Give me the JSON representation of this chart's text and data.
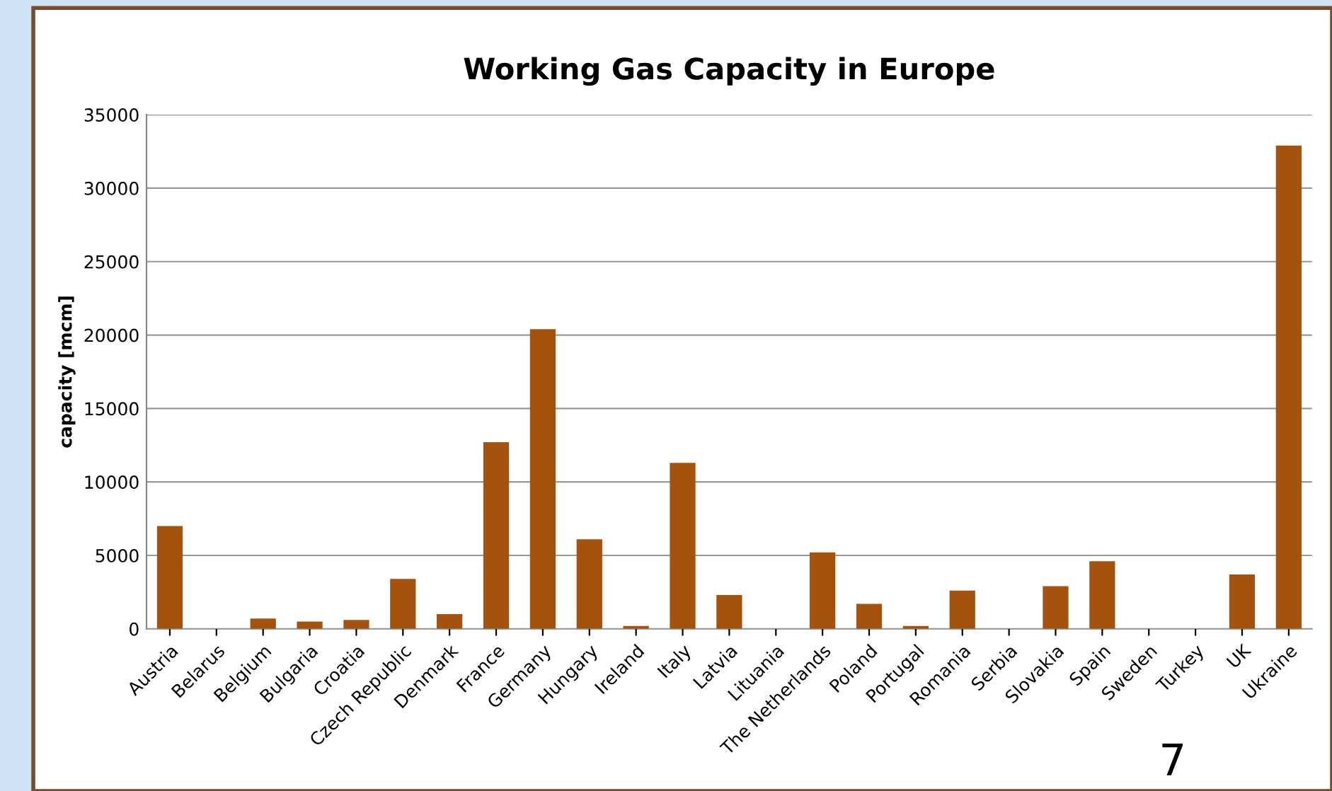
{
  "chart_data": {
    "type": "bar",
    "title": "Working Gas Capacity in Europe",
    "ylabel": "capacity [mcm]",
    "categories": [
      "Austria",
      "Belarus",
      "Belgium",
      "Bulgaria",
      "Croatia",
      "Czech Republic",
      "Denmark",
      "France",
      "Germany",
      "Hungary",
      "Ireland",
      "Italy",
      "Latvia",
      "Lituania",
      "The Netherlands",
      "Poland",
      "Portugal",
      "Romania",
      "Serbia",
      "Slovakia",
      "Spain",
      "Sweden",
      "Turkey",
      "UK",
      "Ukraine"
    ],
    "values": [
      7000,
      0,
      700,
      500,
      600,
      3400,
      1000,
      12700,
      20400,
      6100,
      200,
      11300,
      2300,
      0,
      5200,
      1700,
      200,
      2600,
      0,
      2900,
      4600,
      0,
      0,
      3700,
      32900
    ],
    "color": "#a5520f",
    "ylim": [
      0,
      35000
    ],
    "yticks": [
      0,
      5000,
      10000,
      15000,
      20000,
      25000,
      30000,
      35000
    ],
    "grid": "y",
    "legend": false,
    "annotations": [
      "7"
    ]
  }
}
